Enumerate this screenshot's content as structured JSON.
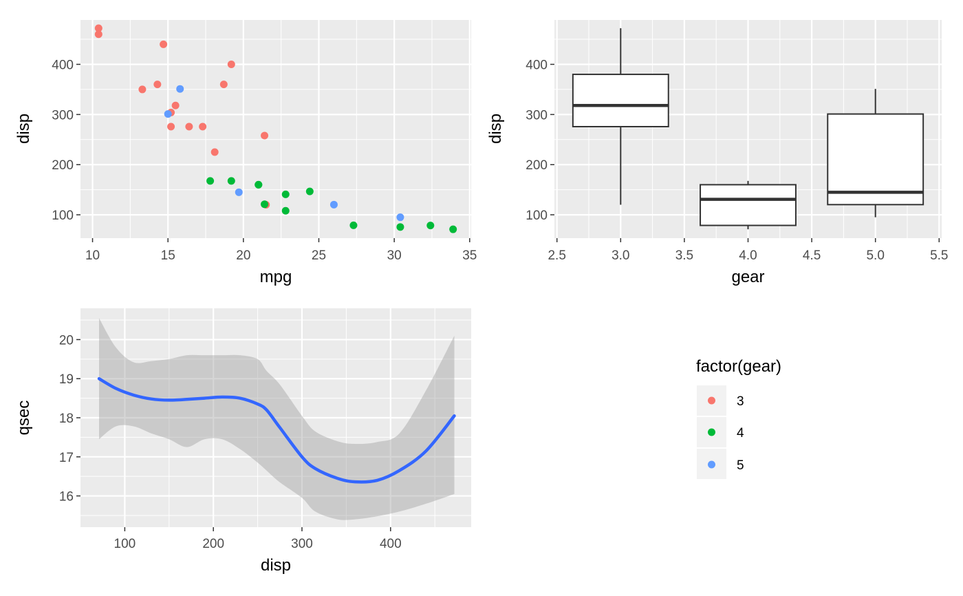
{
  "chart_data": [
    {
      "type": "scatter",
      "xlabel": "mpg",
      "ylabel": "disp",
      "xlim": [
        9.2,
        35.1
      ],
      "ylim": [
        53.5,
        488.5
      ],
      "xticks": [
        10,
        15,
        20,
        25,
        30,
        35
      ],
      "yticks": [
        100,
        200,
        300,
        400
      ],
      "xtick_labels": [
        "10",
        "15",
        "20",
        "25",
        "30",
        "35"
      ],
      "ytick_labels": [
        "100",
        "200",
        "300",
        "400"
      ],
      "grid": true,
      "color_by": "factor(gear)",
      "series": [
        {
          "group": "3",
          "color": "#F8766D",
          "points": [
            [
              10.4,
              472
            ],
            [
              10.4,
              460
            ],
            [
              14.7,
              440
            ],
            [
              19.2,
              400
            ],
            [
              14.3,
              360
            ],
            [
              18.7,
              360
            ],
            [
              13.3,
              350
            ],
            [
              15.5,
              318
            ],
            [
              15.2,
              304
            ],
            [
              21.4,
              258
            ],
            [
              16.4,
              275.8
            ],
            [
              17.3,
              275.8
            ],
            [
              15.2,
              275.8
            ],
            [
              18.1,
              225
            ],
            [
              21.5,
              120.1
            ]
          ]
        },
        {
          "group": "4",
          "color": "#00BA38",
          "points": [
            [
              21.0,
              160
            ],
            [
              21.0,
              160
            ],
            [
              22.8,
              108
            ],
            [
              24.4,
              146.7
            ],
            [
              22.8,
              140.8
            ],
            [
              19.2,
              167.6
            ],
            [
              17.8,
              167.6
            ],
            [
              32.4,
              78.7
            ],
            [
              30.4,
              75.7
            ],
            [
              33.9,
              71.1
            ],
            [
              27.3,
              79
            ],
            [
              21.4,
              121
            ]
          ]
        },
        {
          "group": "5",
          "color": "#619CFF",
          "points": [
            [
              26.0,
              120.3
            ],
            [
              30.4,
              95.1
            ],
            [
              15.8,
              351
            ],
            [
              19.7,
              145
            ],
            [
              15.0,
              301
            ]
          ]
        }
      ]
    },
    {
      "type": "box",
      "xlabel": "gear",
      "ylabel": "disp",
      "xlim": [
        2.48,
        5.52
      ],
      "ylim": [
        53.5,
        488.5
      ],
      "xticks": [
        2.5,
        3.0,
        3.5,
        4.0,
        4.5,
        5.0,
        5.5
      ],
      "yticks": [
        100,
        200,
        300,
        400
      ],
      "xtick_labels": [
        "2.5",
        "3.0",
        "3.5",
        "4.0",
        "4.5",
        "5.0",
        "5.5"
      ],
      "ytick_labels": [
        "100",
        "200",
        "300",
        "400"
      ],
      "grid": true,
      "boxes": [
        {
          "x": 3,
          "ymin": 120.1,
          "lower": 275.8,
          "middle": 318,
          "upper": 380,
          "ymax": 472
        },
        {
          "x": 4,
          "ymin": 71.1,
          "lower": 78.85,
          "middle": 130.9,
          "upper": 160,
          "ymax": 167.6
        },
        {
          "x": 5,
          "ymin": 95.1,
          "lower": 120.3,
          "middle": 145,
          "upper": 301,
          "ymax": 351
        }
      ]
    },
    {
      "type": "line",
      "subtype": "smooth",
      "xlabel": "disp",
      "ylabel": "qsec",
      "xlim": [
        50.0,
        491.0
      ],
      "ylim": [
        15.2,
        20.8
      ],
      "xticks": [
        100,
        200,
        300,
        400
      ],
      "yticks": [
        16,
        17,
        18,
        19,
        20
      ],
      "xtick_labels": [
        "100",
        "200",
        "300",
        "400"
      ],
      "ytick_labels": [
        "16",
        "17",
        "18",
        "19",
        "20"
      ],
      "grid": true,
      "line_color": "#3366FF",
      "band_color": "#999999",
      "x": [
        71,
        90,
        110,
        130,
        150,
        170,
        190,
        210,
        230,
        250,
        260,
        275,
        300,
        315,
        340,
        360,
        385,
        410,
        440,
        472
      ],
      "y": [
        19.0,
        18.75,
        18.58,
        18.48,
        18.45,
        18.47,
        18.5,
        18.53,
        18.5,
        18.35,
        18.2,
        17.75,
        17.0,
        16.7,
        16.45,
        16.36,
        16.4,
        16.65,
        17.15,
        18.05
      ],
      "ymin": [
        17.45,
        17.78,
        17.78,
        17.6,
        17.45,
        17.25,
        17.45,
        17.45,
        17.2,
        16.85,
        16.65,
        16.35,
        15.95,
        15.6,
        15.4,
        15.4,
        15.48,
        15.6,
        15.8,
        16.05
      ],
      "ymax": [
        20.55,
        19.8,
        19.42,
        19.45,
        19.5,
        19.6,
        19.6,
        19.6,
        19.6,
        19.5,
        19.2,
        18.85,
        18.05,
        17.65,
        17.4,
        17.33,
        17.38,
        17.6,
        18.7,
        20.1
      ]
    }
  ],
  "legend": {
    "title": "factor(gear)",
    "items": [
      {
        "label": "3",
        "color": "#F8766D"
      },
      {
        "label": "4",
        "color": "#00BA38"
      },
      {
        "label": "5",
        "color": "#619CFF"
      }
    ]
  },
  "colors": {
    "panel_bg": "#EBEBEB",
    "grid": "#FFFFFF",
    "box_stroke": "#333333"
  }
}
